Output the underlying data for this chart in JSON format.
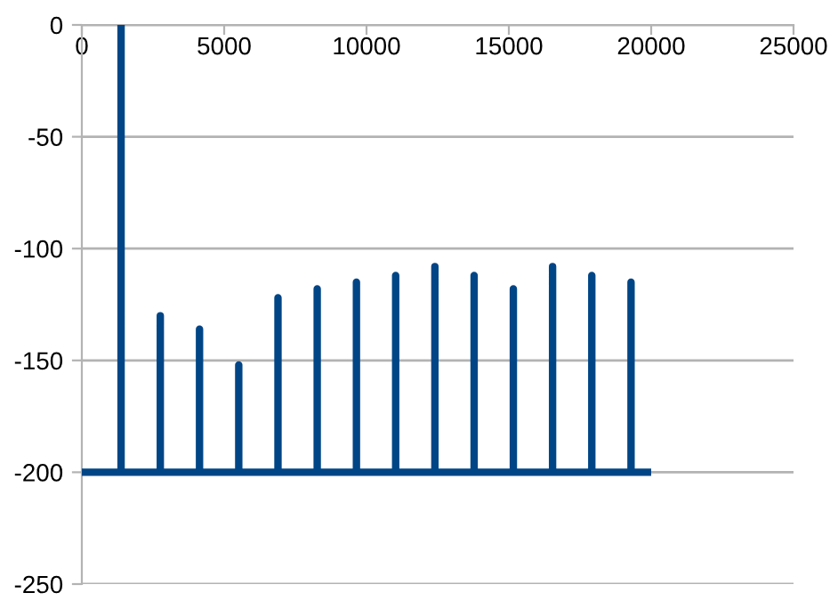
{
  "chart_data": {
    "type": "line",
    "x": [
      0,
      1378,
      1378,
      1378,
      2756,
      2756,
      2756,
      4134,
      4134,
      4134,
      5512,
      5512,
      5512,
      6890,
      6890,
      6890,
      8268,
      8268,
      8268,
      9646,
      9646,
      9646,
      11024,
      11024,
      11024,
      12402,
      12402,
      12402,
      13780,
      13780,
      13780,
      15158,
      15158,
      15158,
      16536,
      16536,
      16536,
      17914,
      17914,
      17914,
      19292,
      19292,
      19292,
      20000
    ],
    "series": [
      {
        "color": "#004586",
        "values": [
          -200,
          -200,
          0,
          -200,
          -200,
          -130,
          -200,
          -200,
          -136,
          -200,
          -200,
          -152,
          -200,
          -200,
          -122,
          -200,
          -200,
          -118,
          -200,
          -200,
          -115,
          -200,
          -200,
          -112,
          -200,
          -200,
          -108,
          -200,
          -200,
          -112,
          -200,
          -200,
          -118,
          -200,
          -200,
          -108,
          -200,
          -200,
          -112,
          -200,
          -200,
          -115,
          -200,
          -200
        ]
      }
    ],
    "xlim": [
      0,
      25000
    ],
    "xticks": [
      0,
      5000,
      10000,
      15000,
      20000,
      25000
    ],
    "ylim": [
      -250,
      0
    ],
    "yticks": [
      -250,
      -200,
      -150,
      -100,
      -50,
      0
    ],
    "grid": "y",
    "marker": "none",
    "line_style": "solid",
    "legend": false
  }
}
